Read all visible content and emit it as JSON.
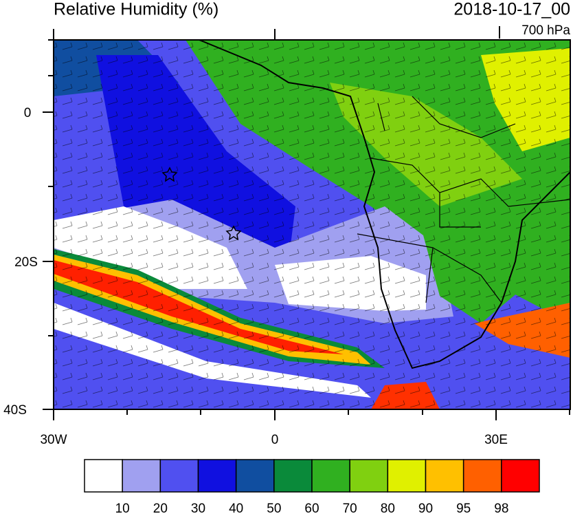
{
  "header": {
    "title": "Relative Humidity (%)",
    "date": "2018-10-17_00",
    "level": "700 hPa"
  },
  "map": {
    "lat_labels": [
      "0",
      "20S",
      "40S"
    ],
    "lon_labels": [
      "30W",
      "0",
      "30E"
    ]
  },
  "colorbar": {
    "colors": [
      "#ffffff",
      "#a0a0f0",
      "#5050f0",
      "#1010e0",
      "#104ea0",
      "#0a8a3a",
      "#30b020",
      "#80d010",
      "#e0f000",
      "#ffc000",
      "#ff6000",
      "#ff0000"
    ],
    "levels": [
      10,
      20,
      30,
      40,
      50,
      60,
      70,
      80,
      90,
      95,
      98
    ]
  }
}
